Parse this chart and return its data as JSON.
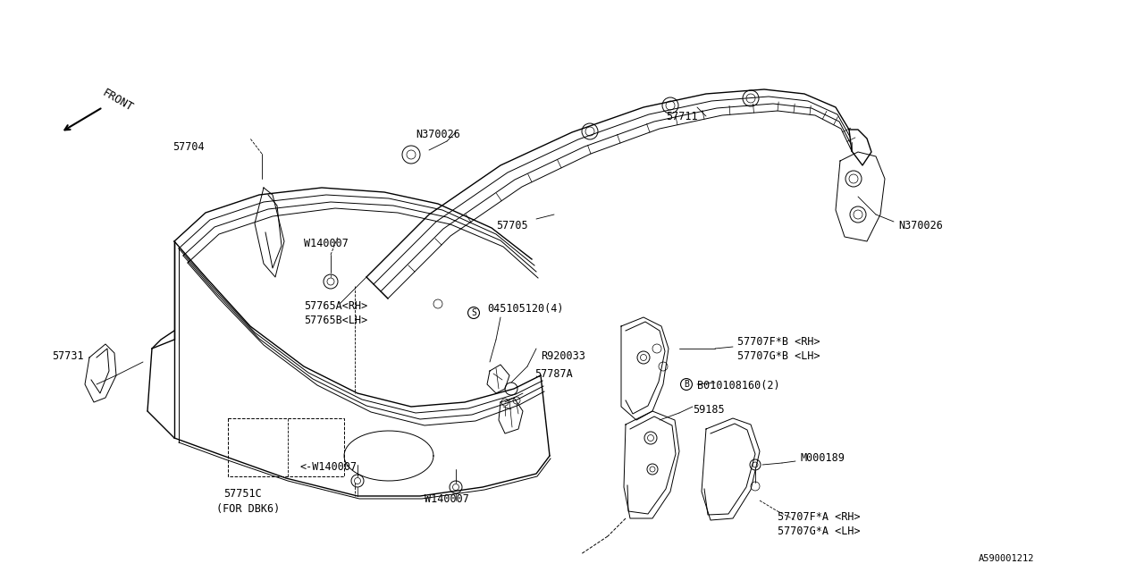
{
  "bg_color": "#ffffff",
  "line_color": "#000000",
  "fig_width": 12.8,
  "fig_height": 6.4,
  "dpi": 100,
  "xlim": [
    0,
    1280
  ],
  "ylim": [
    640,
    0
  ]
}
